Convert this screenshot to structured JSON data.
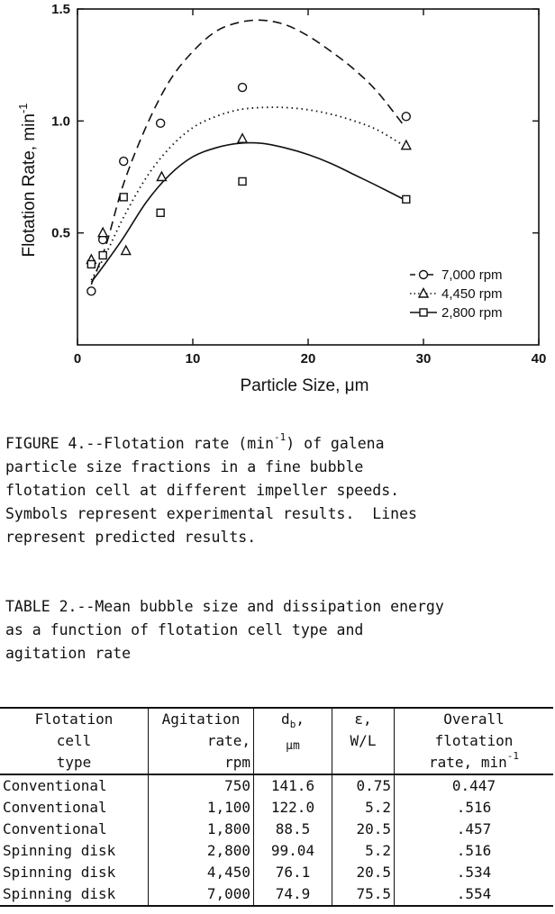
{
  "chart_data": {
    "type": "scatter",
    "xlabel": "Particle Size, μm",
    "ylabel": "Flotation Rate, min",
    "ylabel_sup": "-1",
    "xlim": [
      0,
      40
    ],
    "ylim": [
      0,
      1.5
    ],
    "x_ticks": [
      0,
      10,
      20,
      30,
      40
    ],
    "y_ticks": [
      0.5,
      1.0,
      1.5
    ],
    "x_tick_labels": [
      "0",
      "10",
      "20",
      "30",
      "40"
    ],
    "y_tick_labels": [
      "0.5",
      "1.0",
      "1.5"
    ],
    "legend_position": "bottom-right",
    "series": [
      {
        "name": "7,000 rpm",
        "marker": "circle",
        "line_style": "dashed",
        "points": [
          [
            1.2,
            0.24
          ],
          [
            2.2,
            0.47
          ],
          [
            4.0,
            0.82
          ],
          [
            7.2,
            0.99
          ],
          [
            14.3,
            1.15
          ],
          [
            28.5,
            1.02
          ]
        ],
        "predicted": [
          [
            1.2,
            0.27
          ],
          [
            2.5,
            0.45
          ],
          [
            4.0,
            0.72
          ],
          [
            6.0,
            0.98
          ],
          [
            8.0,
            1.18
          ],
          [
            10.0,
            1.31
          ],
          [
            12.0,
            1.4
          ],
          [
            14.0,
            1.44
          ],
          [
            16.0,
            1.45
          ],
          [
            18.0,
            1.43
          ],
          [
            20.0,
            1.38
          ],
          [
            22.0,
            1.31
          ],
          [
            24.0,
            1.23
          ],
          [
            26.0,
            1.13
          ],
          [
            28.3,
            0.98
          ]
        ]
      },
      {
        "name": "4,450 rpm",
        "marker": "triangle",
        "line_style": "dotted",
        "points": [
          [
            1.2,
            0.38
          ],
          [
            2.2,
            0.5
          ],
          [
            4.2,
            0.42
          ],
          [
            7.3,
            0.75
          ],
          [
            14.3,
            0.92
          ],
          [
            28.5,
            0.89
          ]
        ],
        "predicted": [
          [
            1.2,
            0.29
          ],
          [
            2.5,
            0.41
          ],
          [
            4.0,
            0.57
          ],
          [
            6.0,
            0.75
          ],
          [
            8.0,
            0.88
          ],
          [
            10.0,
            0.97
          ],
          [
            12.0,
            1.02
          ],
          [
            14.0,
            1.05
          ],
          [
            16.0,
            1.06
          ],
          [
            18.0,
            1.06
          ],
          [
            20.0,
            1.05
          ],
          [
            22.0,
            1.03
          ],
          [
            24.0,
            1.0
          ],
          [
            26.0,
            0.96
          ],
          [
            28.3,
            0.89
          ]
        ]
      },
      {
        "name": "2,800 rpm",
        "marker": "square",
        "line_style": "solid",
        "points": [
          [
            1.2,
            0.36
          ],
          [
            2.2,
            0.4
          ],
          [
            4.0,
            0.66
          ],
          [
            7.2,
            0.59
          ],
          [
            14.3,
            0.73
          ],
          [
            28.5,
            0.65
          ]
        ],
        "predicted": [
          [
            1.2,
            0.28
          ],
          [
            2.5,
            0.37
          ],
          [
            4.0,
            0.48
          ],
          [
            6.0,
            0.64
          ],
          [
            8.0,
            0.76
          ],
          [
            10.0,
            0.84
          ],
          [
            12.0,
            0.88
          ],
          [
            14.0,
            0.9
          ],
          [
            16.0,
            0.9
          ],
          [
            18.0,
            0.88
          ],
          [
            20.0,
            0.85
          ],
          [
            22.0,
            0.81
          ],
          [
            24.0,
            0.76
          ],
          [
            26.0,
            0.71
          ],
          [
            28.3,
            0.65
          ]
        ]
      }
    ]
  },
  "figure_caption": {
    "line1_pre": "FIGURE 4.--Flotation rate (min",
    "line1_sup": "-1",
    "line1_post": ") of galena",
    "rest": "particle size fractions in a fine bubble\nflotation cell at different impeller speeds.\nSymbols represent experimental results.  Lines\nrepresent predicted results."
  },
  "table_caption": "TABLE 2.--Mean bubble size and dissipation energy\nas a function of flotation cell type and\nagitation rate",
  "table": {
    "headers": {
      "cell_type": [
        "Flotation",
        "cell",
        "type"
      ],
      "agitation": [
        "Agitation",
        "rate,",
        "rpm"
      ],
      "db_main": "d",
      "db_sub": "b",
      "db_comma": ",",
      "db_unit": "μm",
      "eps": [
        "ε,",
        "W/L"
      ],
      "overall_line1": "Overall",
      "overall_line2": "flotation",
      "overall_line3": "rate, min",
      "overall_sup": "-1"
    },
    "rows": [
      {
        "type": "Conventional",
        "rate": "750",
        "db": "141.6",
        "eps": "0.75",
        "overall": "0.447"
      },
      {
        "type": "Conventional",
        "rate": "1,100",
        "db": "122.0",
        "eps": "5.2",
        "overall": ".516"
      },
      {
        "type": "Conventional",
        "rate": "1,800",
        "db": "88.5",
        "eps": "20.5",
        "overall": ".457"
      },
      {
        "type": "Spinning disk",
        "rate": "2,800",
        "db": "99.04",
        "eps": "5.2",
        "overall": ".516"
      },
      {
        "type": "Spinning disk",
        "rate": "4,450",
        "db": "76.1",
        "eps": "20.5",
        "overall": ".534"
      },
      {
        "type": "Spinning disk",
        "rate": "7,000",
        "db": "74.9",
        "eps": "75.5",
        "overall": ".554"
      }
    ]
  }
}
